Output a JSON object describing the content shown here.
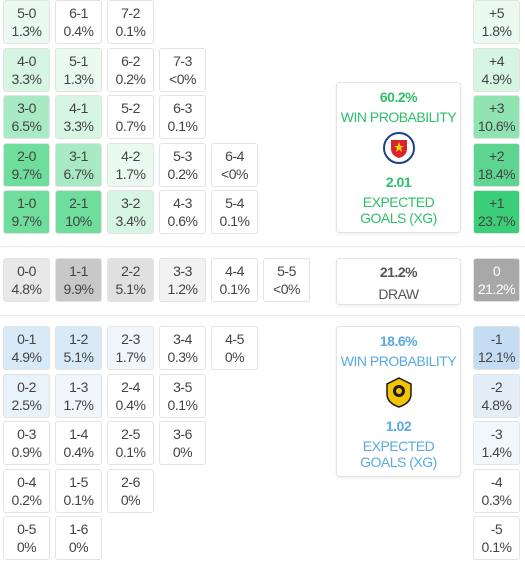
{
  "home": {
    "rows": [
      [
        {
          "score": "5-0",
          "pct": "1.3%",
          "color": "#eafaf1"
        },
        {
          "score": "6-1",
          "pct": "0.4%",
          "color": "#ffffff"
        },
        {
          "score": "7-2",
          "pct": "0.1%",
          "color": "#ffffff"
        }
      ],
      [
        {
          "score": "4-0",
          "pct": "3.3%",
          "color": "#d6f5e3"
        },
        {
          "score": "5-1",
          "pct": "1.3%",
          "color": "#eafaf1"
        },
        {
          "score": "6-2",
          "pct": "0.2%",
          "color": "#ffffff"
        },
        {
          "score": "7-3",
          "pct": "<0%",
          "color": "#ffffff"
        }
      ],
      [
        {
          "score": "3-0",
          "pct": "6.5%",
          "color": "#a8eac3"
        },
        {
          "score": "4-1",
          "pct": "3.3%",
          "color": "#d6f5e3"
        },
        {
          "score": "5-2",
          "pct": "0.7%",
          "color": "#ffffff"
        },
        {
          "score": "6-3",
          "pct": "0.1%",
          "color": "#ffffff"
        }
      ],
      [
        {
          "score": "2-0",
          "pct": "9.7%",
          "color": "#6fdd9c"
        },
        {
          "score": "3-1",
          "pct": "6.7%",
          "color": "#a8eac3"
        },
        {
          "score": "4-2",
          "pct": "1.7%",
          "color": "#eafaf1"
        },
        {
          "score": "5-3",
          "pct": "0.2%",
          "color": "#ffffff"
        },
        {
          "score": "6-4",
          "pct": "<0%",
          "color": "#ffffff"
        }
      ],
      [
        {
          "score": "1-0",
          "pct": "9.7%",
          "color": "#6fdd9c"
        },
        {
          "score": "2-1",
          "pct": "10%",
          "color": "#6fdd9c"
        },
        {
          "score": "3-2",
          "pct": "3.4%",
          "color": "#d6f5e3"
        },
        {
          "score": "4-3",
          "pct": "0.6%",
          "color": "#ffffff"
        },
        {
          "score": "5-4",
          "pct": "0.1%",
          "color": "#ffffff"
        }
      ]
    ],
    "margins": [
      {
        "label": "+5",
        "pct": "1.8%",
        "color": "#eafaf1"
      },
      {
        "label": "+4",
        "pct": "4.9%",
        "color": "#d6f5e3"
      },
      {
        "label": "+3",
        "pct": "10.6%",
        "color": "#8fe4b1"
      },
      {
        "label": "+2",
        "pct": "18.4%",
        "color": "#5ed590"
      },
      {
        "label": "+1",
        "pct": "23.7%",
        "color": "#3ccf7a"
      }
    ],
    "summary": {
      "win_pct": "60.2%",
      "win_label": "WIN PROBABILITY",
      "xg": "2.01",
      "xg_label": "EXPECTED GOALS (XG)",
      "color": "#2fbf6b"
    }
  },
  "draw": {
    "rows": [
      [
        {
          "score": "0-0",
          "pct": "4.8%",
          "color": "#e8e8e8"
        },
        {
          "score": "1-1",
          "pct": "9.9%",
          "color": "#c8c8c8"
        },
        {
          "score": "2-2",
          "pct": "5.1%",
          "color": "#e0e0e0"
        },
        {
          "score": "3-3",
          "pct": "1.2%",
          "color": "#f2f2f2"
        },
        {
          "score": "4-4",
          "pct": "0.1%",
          "color": "#ffffff"
        },
        {
          "score": "5-5",
          "pct": "<0%",
          "color": "#ffffff"
        }
      ]
    ],
    "margins": [
      {
        "label": "0",
        "pct": "21.2%",
        "color": "#a8a8a8"
      }
    ],
    "summary": {
      "pct": "21.2%",
      "label": "DRAW"
    }
  },
  "away": {
    "rows": [
      [
        {
          "score": "0-1",
          "pct": "4.9%",
          "color": "#d8e9f7"
        },
        {
          "score": "1-2",
          "pct": "5.1%",
          "color": "#d8e9f7"
        },
        {
          "score": "2-3",
          "pct": "1.7%",
          "color": "#f0f6fc"
        },
        {
          "score": "3-4",
          "pct": "0.3%",
          "color": "#ffffff"
        },
        {
          "score": "4-5",
          "pct": "0%",
          "color": "#ffffff"
        }
      ],
      [
        {
          "score": "0-2",
          "pct": "2.5%",
          "color": "#e8f2fa"
        },
        {
          "score": "1-3",
          "pct": "1.7%",
          "color": "#f0f6fc"
        },
        {
          "score": "2-4",
          "pct": "0.4%",
          "color": "#ffffff"
        },
        {
          "score": "3-5",
          "pct": "0.1%",
          "color": "#ffffff"
        }
      ],
      [
        {
          "score": "0-3",
          "pct": "0.9%",
          "color": "#ffffff"
        },
        {
          "score": "1-4",
          "pct": "0.4%",
          "color": "#ffffff"
        },
        {
          "score": "2-5",
          "pct": "0.1%",
          "color": "#ffffff"
        },
        {
          "score": "3-6",
          "pct": "0%",
          "color": "#ffffff"
        }
      ],
      [
        {
          "score": "0-4",
          "pct": "0.2%",
          "color": "#ffffff"
        },
        {
          "score": "1-5",
          "pct": "0.1%",
          "color": "#ffffff"
        },
        {
          "score": "2-6",
          "pct": "0%",
          "color": "#ffffff"
        }
      ],
      [
        {
          "score": "0-5",
          "pct": "0%",
          "color": "#ffffff"
        },
        {
          "score": "1-6",
          "pct": "0%",
          "color": "#ffffff"
        }
      ]
    ],
    "margins": [
      {
        "label": "-1",
        "pct": "12.1%",
        "color": "#c4ddf2"
      },
      {
        "label": "-2",
        "pct": "4.8%",
        "color": "#e3eef9"
      },
      {
        "label": "-3",
        "pct": "1.4%",
        "color": "#f2f7fc"
      },
      {
        "label": "-4",
        "pct": "0.3%",
        "color": "#ffffff"
      },
      {
        "label": "-5",
        "pct": "0.1%",
        "color": "#ffffff"
      }
    ],
    "summary": {
      "win_pct": "18.6%",
      "win_label": "WIN PROBABILITY",
      "xg": "1.02",
      "xg_label": "EXPECTED GOALS (XG)",
      "color": "#5aa9e0"
    }
  }
}
